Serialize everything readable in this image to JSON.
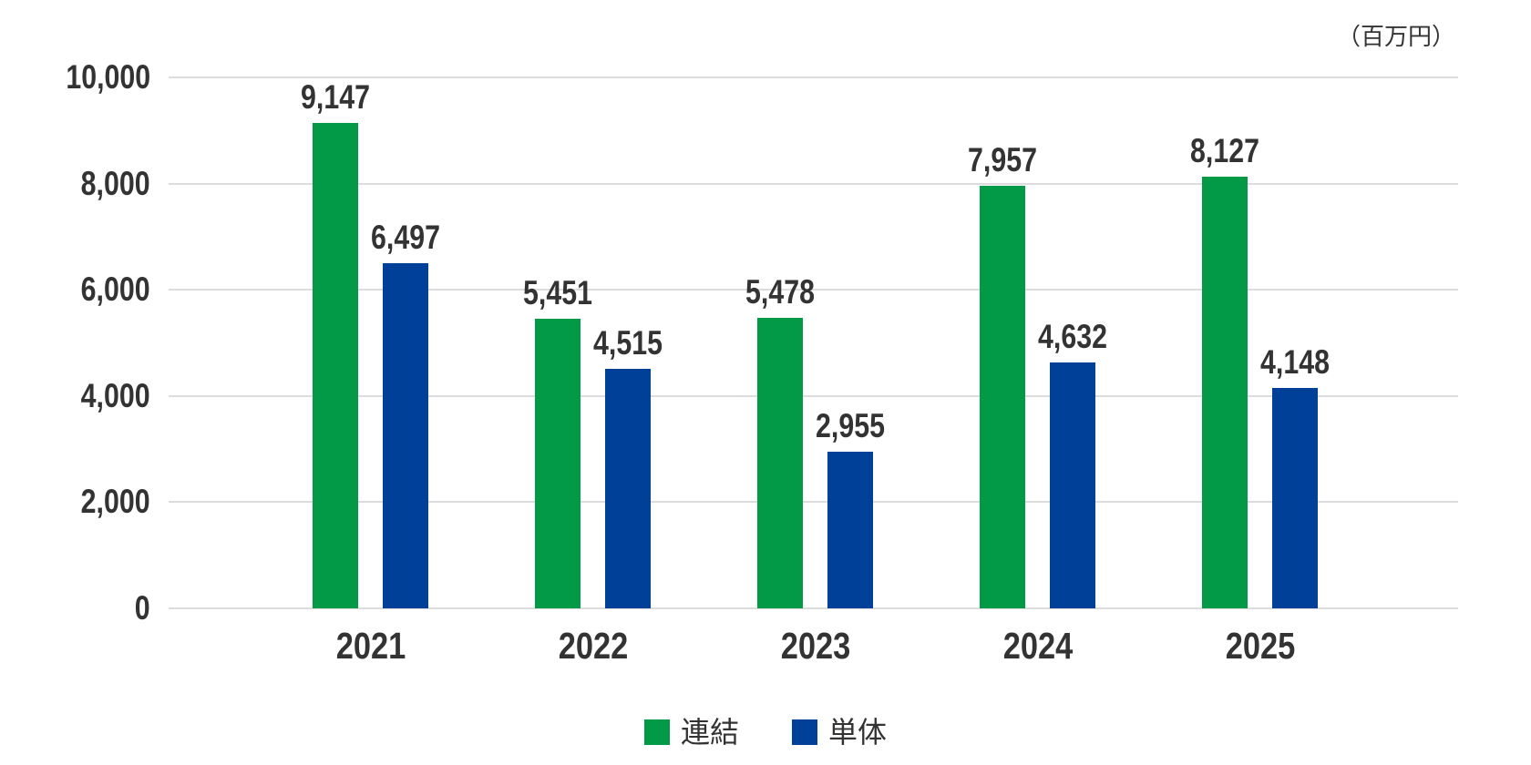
{
  "unit_label": "（百万円）",
  "chart_data": {
    "type": "bar",
    "title": "",
    "unit": "百万円",
    "categories": [
      "2021",
      "2022",
      "2023",
      "2024",
      "2025"
    ],
    "series": [
      {
        "key": "consolidated",
        "name": "連結",
        "color": "#029a46",
        "values": [
          9147,
          5451,
          5478,
          7957,
          8127
        ],
        "labels": [
          "9,147",
          "5,451",
          "5,478",
          "7,957",
          "8,127"
        ]
      },
      {
        "key": "standalone",
        "name": "単体",
        "color": "#004098",
        "values": [
          6497,
          4515,
          2955,
          4632,
          4148
        ],
        "labels": [
          "6,497",
          "4,515",
          "2,955",
          "4,632",
          "4,148"
        ]
      }
    ],
    "ylim": [
      0,
      10000
    ],
    "y_ticks": [
      {
        "value": 0,
        "label": "0"
      },
      {
        "value": 2000,
        "label": "2,000"
      },
      {
        "value": 4000,
        "label": "4,000"
      },
      {
        "value": 6000,
        "label": "6,000"
      },
      {
        "value": 8000,
        "label": "8,000"
      },
      {
        "value": 10000,
        "label": "10,000"
      }
    ],
    "grid": "horizontal",
    "legend_position": "bottom",
    "colors": {
      "text": "#333333",
      "gridline": "#dcdcdc"
    }
  }
}
